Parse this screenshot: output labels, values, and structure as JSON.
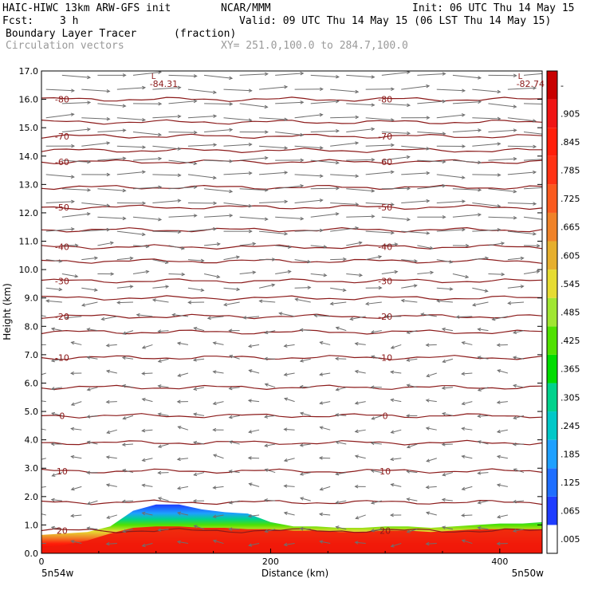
{
  "header": {
    "model": "HAIC-HIWC 13km ARW-GFS init",
    "org": "NCAR/MMM",
    "init": "Init: 06 UTC Thu 14 May 15",
    "fcst_label": "Fcst:",
    "fcst_value": "3 h",
    "valid": "Valid: 09 UTC Thu 14 May 15 (06 LST Thu 14 May 15)",
    "field1": "Boundary Layer Tracer",
    "field1_units": "(fraction)",
    "field2": "Circulation vectors",
    "xy": "XY= 251.0,100.0 to 284.7,100.0"
  },
  "chart_data": {
    "type": "contour-cross-section",
    "xlabel": "Distance (km)",
    "ylabel": "Height (km)",
    "xlim": [
      0,
      437
    ],
    "ylim": [
      0,
      17
    ],
    "x_ticks": [
      "0",
      "200",
      "400"
    ],
    "x_tick_values": [
      0,
      200,
      400
    ],
    "y_ticks": [
      "0.0",
      "1.0",
      "2.0",
      "3.0",
      "4.0",
      "5.0",
      "6.0",
      "7.0",
      "8.0",
      "9.0",
      "10.0",
      "11.0",
      "12.0",
      "13.0",
      "14.0",
      "15.0",
      "16.0",
      "17.0"
    ],
    "x_end_labels": {
      "left": "5n54w",
      "right": "5n50w"
    },
    "colorbar": {
      "labels": [
        ".005",
        ".065",
        ".125",
        ".185",
        ".245",
        ".305",
        ".365",
        ".425",
        ".485",
        ".545",
        ".605",
        ".665",
        ".725",
        ".785",
        ".845",
        ".905",
        "-"
      ],
      "colors": [
        "#ffffff",
        "#1e3cff",
        "#1e6eff",
        "#1ea0ff",
        "#00c8c8",
        "#00d28c",
        "#00dc00",
        "#50e100",
        "#a0e632",
        "#e6dc32",
        "#e6af2d",
        "#f08228",
        "#fa5a1e",
        "#ff3214",
        "#ff1e0a",
        "#f01414",
        "#c80000"
      ]
    },
    "tracer_profile": {
      "x": [
        0,
        20,
        40,
        60,
        80,
        100,
        120,
        140,
        160,
        180,
        200,
        220,
        240,
        260,
        280,
        300,
        320,
        340,
        360,
        380,
        400,
        420,
        437
      ],
      "top": [
        0.65,
        0.7,
        0.75,
        0.95,
        1.5,
        1.72,
        1.72,
        1.55,
        1.45,
        1.4,
        1.1,
        0.95,
        0.95,
        0.9,
        0.9,
        0.95,
        0.95,
        0.9,
        0.95,
        1.0,
        1.05,
        1.05,
        1.1
      ],
      "core": [
        0.2,
        0.3,
        0.45,
        0.7,
        0.9,
        0.95,
        0.95,
        0.9,
        0.9,
        0.85,
        0.85,
        0.8,
        0.8,
        0.75,
        0.75,
        0.8,
        0.8,
        0.75,
        0.8,
        0.85,
        0.85,
        0.85,
        0.85
      ]
    },
    "temperature_contours": [
      {
        "label": "20",
        "height_km": 0.8
      },
      {
        "label": "10",
        "height_km": 2.9
      },
      {
        "label": "0",
        "height_km": 4.85
      },
      {
        "label": "-10",
        "height_km": 6.9
      },
      {
        "label": "-20",
        "height_km": 8.35
      },
      {
        "label": "-30",
        "height_km": 9.6
      },
      {
        "label": "-40",
        "height_km": 10.8
      },
      {
        "label": "-50",
        "height_km": 12.2
      },
      {
        "label": "-60",
        "height_km": 13.8
      },
      {
        "label": "-70",
        "height_km": 14.7
      },
      {
        "label": "-80",
        "height_km": 16.0
      }
    ],
    "extra_contour_heights_km": [
      1.8,
      3.9,
      5.85,
      7.8,
      9.0,
      10.3,
      11.4,
      12.9,
      14.2,
      15.2
    ],
    "lows": [
      {
        "label": "L",
        "value": "-84.31",
        "x": 100
      },
      {
        "label": "L",
        "value": "-82.74",
        "x": 420
      }
    ],
    "vectors_note": "Circulation vectors"
  }
}
